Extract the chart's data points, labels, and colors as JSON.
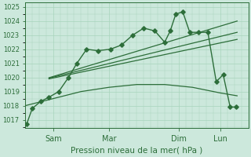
{
  "title": "Pression niveau de la mer( hPa )",
  "ylabel_values": [
    1017,
    1018,
    1019,
    1020,
    1021,
    1022,
    1023,
    1024,
    1025
  ],
  "ylim": [
    1016.4,
    1025.3
  ],
  "bg_color": "#cce8dc",
  "grid_color": "#a8d4bc",
  "line_color": "#2d6e3a",
  "day_labels": [
    "Sam",
    "Mar",
    "Dim",
    "Lun"
  ],
  "day_positions": [
    1.0,
    3.0,
    5.5,
    7.0
  ],
  "xlim": [
    0.0,
    8.0
  ],
  "series": [
    {
      "x": [
        0.05,
        0.25,
        0.55,
        0.85,
        1.2,
        1.55,
        1.85,
        2.2,
        2.6,
        3.05,
        3.45,
        3.85,
        4.25,
        4.65,
        5.0,
        5.2,
        5.4,
        5.65,
        5.9,
        6.2,
        6.55,
        6.85,
        7.1,
        7.35,
        7.55
      ],
      "y": [
        1016.7,
        1017.8,
        1018.3,
        1018.6,
        1019.0,
        1020.0,
        1021.0,
        1022.0,
        1021.9,
        1022.0,
        1022.3,
        1023.0,
        1023.5,
        1023.3,
        1022.5,
        1023.3,
        1024.5,
        1024.65,
        1023.2,
        1023.2,
        1023.2,
        1019.7,
        1020.2,
        1017.9,
        1017.9
      ],
      "marker": "D",
      "markersize": 2.8,
      "lw": 1.0
    },
    {
      "x": [
        0.0,
        1.0,
        2.0,
        3.0,
        4.0,
        5.0,
        5.5,
        6.0,
        6.5,
        7.0,
        7.6
      ],
      "y": [
        1018.0,
        1018.5,
        1019.0,
        1019.3,
        1019.5,
        1019.5,
        1019.4,
        1019.3,
        1019.1,
        1018.9,
        1018.7
      ],
      "marker": null,
      "markersize": 0,
      "lw": 0.9
    },
    {
      "x": [
        0.85,
        7.6
      ],
      "y": [
        1019.9,
        1022.7
      ],
      "marker": null,
      "markersize": 0,
      "lw": 0.9
    },
    {
      "x": [
        0.85,
        7.6
      ],
      "y": [
        1019.95,
        1023.2
      ],
      "marker": null,
      "markersize": 0,
      "lw": 0.9
    },
    {
      "x": [
        0.85,
        7.6
      ],
      "y": [
        1019.98,
        1024.0
      ],
      "marker": null,
      "markersize": 0,
      "lw": 0.9
    }
  ]
}
